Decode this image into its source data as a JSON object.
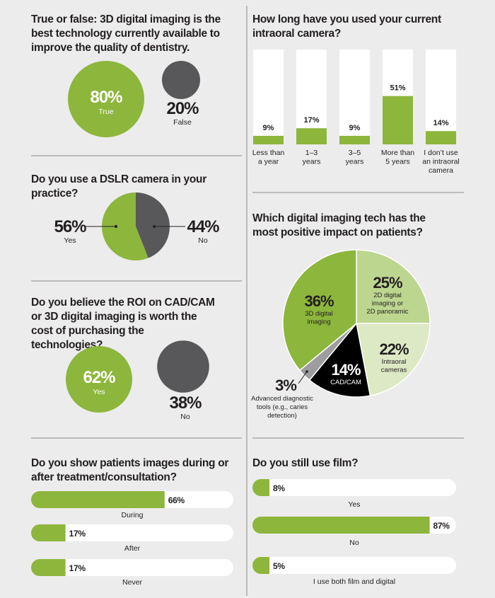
{
  "colors": {
    "green": "#8db63c",
    "dark": "#58585a",
    "light_green": "#bcd68f",
    "pale_green": "#dde9c4",
    "black": "#000000",
    "gray": "#9d9d9f",
    "bg": "#ececec",
    "panel": "#ffffff"
  },
  "chart_data": [
    {
      "id": "q1",
      "type": "pie",
      "title": "True or false: 3D digital imaging is the best technology currently available to improve the quality of dentistry.",
      "slices": [
        {
          "label": "True",
          "value": 80,
          "value_label": "80%"
        },
        {
          "label": "False",
          "value": 20,
          "value_label": "20%"
        }
      ]
    },
    {
      "id": "q2",
      "type": "pie",
      "title": "Do you use a DSLR camera in your practice?",
      "slices": [
        {
          "label": "Yes",
          "value": 56,
          "value_label": "56%"
        },
        {
          "label": "No",
          "value": 44,
          "value_label": "44%"
        }
      ]
    },
    {
      "id": "q3",
      "type": "pie",
      "title": "Do you believe the ROI on CAD/CAM or 3D digital imaging is worth the cost of purchasing the technologies?",
      "slices": [
        {
          "label": "Yes",
          "value": 62,
          "value_label": "62%"
        },
        {
          "label": "No",
          "value": 38,
          "value_label": "38%"
        }
      ]
    },
    {
      "id": "q4",
      "type": "bar",
      "orientation": "horizontal",
      "title": "Do you show patients images during or after treatment/consultation?",
      "categories": [
        "During",
        "After",
        "Never"
      ],
      "values": [
        66,
        17,
        17
      ],
      "value_labels": [
        "66%",
        "17%",
        "17%"
      ],
      "xlim": [
        0,
        100
      ]
    },
    {
      "id": "q5",
      "type": "bar",
      "orientation": "vertical",
      "title": "How long have you used your current intraoral camera?",
      "categories": [
        "Less than a year",
        "1–3 years",
        "3–5 years",
        "More than 5 years",
        "I don’t use an intraoral camera"
      ],
      "category_lines": [
        [
          "Less than",
          "a year"
        ],
        [
          "1–3",
          "years"
        ],
        [
          "3–5",
          "years"
        ],
        [
          "More than",
          "5 years"
        ],
        [
          "I don’t use",
          "an intraoral",
          "camera"
        ]
      ],
      "values": [
        9,
        17,
        9,
        51,
        14
      ],
      "value_labels": [
        "9%",
        "17%",
        "9%",
        "51%",
        "14%"
      ],
      "ylim": [
        0,
        100
      ]
    },
    {
      "id": "q6",
      "type": "pie",
      "title": "Which digital imaging tech has the most positive impact on patients?",
      "slices": [
        {
          "label": "2D digital imaging or 2D panoramic",
          "label_lines": [
            "2D digital",
            "imaging or",
            "2D panoramic"
          ],
          "value": 25,
          "value_label": "25%"
        },
        {
          "label": "Intraoral cameras",
          "label_lines": [
            "Intraoral",
            "cameras"
          ],
          "value": 22,
          "value_label": "22%"
        },
        {
          "label": "CAD/CAM",
          "label_lines": [
            "CAD/CAM"
          ],
          "value": 14,
          "value_label": "14%"
        },
        {
          "label": "Advanced diagnostic tools (e.g., caries detection)",
          "label_lines": [
            "Advanced diagnostic",
            "tools (e.g., caries",
            "detection)"
          ],
          "value": 3,
          "value_label": "3%"
        },
        {
          "label": "3D digital imaging",
          "label_lines": [
            "3D digital",
            "imaging"
          ],
          "value": 36,
          "value_label": "36%"
        }
      ]
    },
    {
      "id": "q7",
      "type": "bar",
      "orientation": "horizontal",
      "title": "Do you still use film?",
      "categories": [
        "Yes",
        "No",
        "I use both film and digital"
      ],
      "values": [
        8,
        87,
        5
      ],
      "value_labels": [
        "8%",
        "87%",
        "5%"
      ],
      "xlim": [
        0,
        100
      ]
    }
  ]
}
